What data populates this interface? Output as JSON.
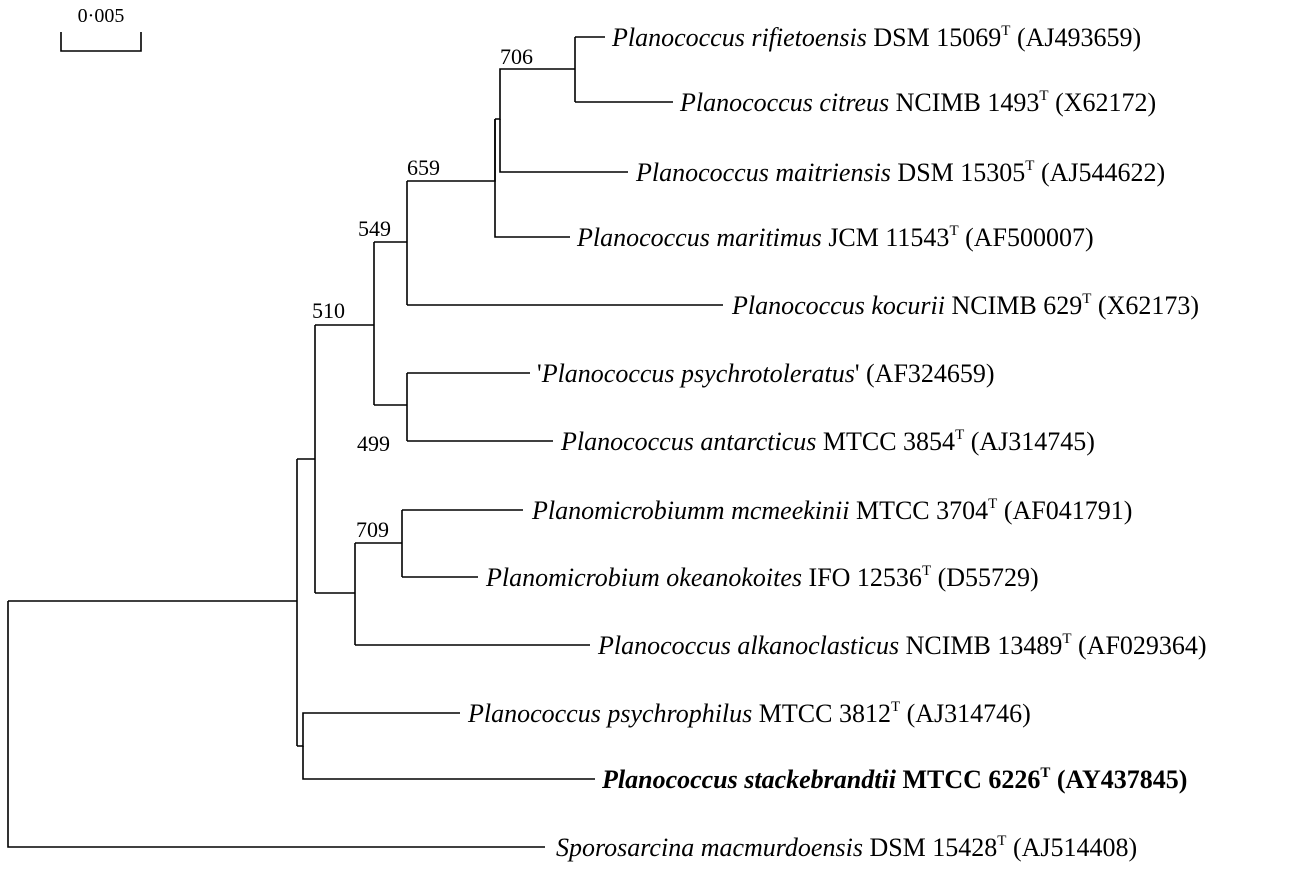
{
  "tree": {
    "scale_bar": {
      "label": "0·005"
    },
    "bootstrap": [
      "706",
      "659",
      "549",
      "510",
      "499",
      "709"
    ],
    "taxa": [
      {
        "genus": "'Planococcus rifietoensis",
        "name": "Planococcus rifietoensis",
        "strain": " DSM 15069",
        "sup": "T",
        "acc": " (AJ493659)"
      },
      {
        "name": "Planococcus citreus",
        "strain": " NCIMB 1493",
        "sup": "T",
        "acc": " (X62172)"
      },
      {
        "name": "Planococcus maitriensis",
        "strain": " DSM 15305",
        "sup": "T",
        "acc": " (AJ544622)"
      },
      {
        "name": "Planococcus maritimus",
        "strain": " JCM 11543",
        "sup": "T",
        "acc": " (AF500007)"
      },
      {
        "name": "Planococcus kocurii",
        "strain": " NCIMB 629",
        "sup": "T",
        "acc": " (X62173)"
      },
      {
        "prefix": "'",
        "name": "Planococcus psychrotoleratus",
        "strain": "' (AF324659)",
        "sup": "",
        "acc": ""
      },
      {
        "name": "Planococcus antarcticus",
        "strain": " MTCC 3854",
        "sup": "T",
        "acc": " (AJ314745)"
      },
      {
        "name": "Planomicrobiumm mcmeekinii",
        "strain": " MTCC 3704",
        "sup": "T",
        "acc": " (AF041791)"
      },
      {
        "name": "Planomicrobium okeanokoites",
        "strain": " IFO 12536",
        "sup": "T",
        "acc": " (D55729)"
      },
      {
        "name": "Planococcus alkanoclasticus",
        "strain": " NCIMB 13489",
        "sup": "T",
        "acc": " (AF029364)"
      },
      {
        "name": "Planococcus psychrophilus",
        "strain": " MTCC 3812",
        "sup": "T",
        "acc": " (AJ314746)"
      },
      {
        "name": "Planococcus stackebrandtii",
        "strain": " MTCC 6226",
        "sup": "T",
        "acc": " (AY437845)",
        "bold": true
      },
      {
        "name": "Sporosarcina macmurdoensis",
        "strain": " DSM 15428",
        "sup": "T",
        "acc": " (AJ514408)"
      }
    ]
  }
}
